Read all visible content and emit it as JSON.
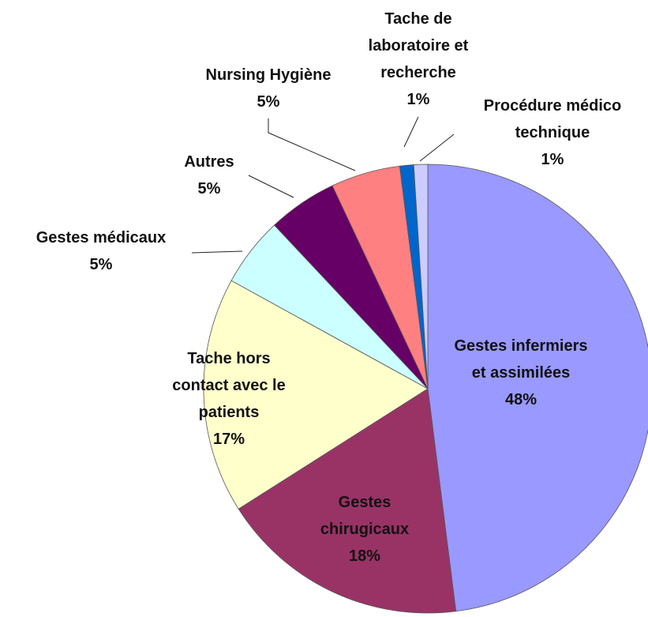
{
  "chart_data": {
    "type": "pie",
    "categories": [
      "Gestes infermiers et assimilées",
      "Gestes chirugicaux",
      "Tache hors contact avec le patients",
      "Gestes médicaux",
      "Autres",
      "Nursing Hygiène",
      "Tache de laboratoire et recherche",
      "Procédure médico technique"
    ],
    "values": [
      48,
      18,
      17,
      5,
      5,
      5,
      1,
      1
    ],
    "value_labels": [
      "48%",
      "18%",
      "17%",
      "5%",
      "5%",
      "5%",
      "1%",
      "1%"
    ],
    "colors": [
      "#9999ff",
      "#993366",
      "#ffffcc",
      "#ccffff",
      "#660066",
      "#ff8080",
      "#0066cc",
      "#ccccff"
    ]
  }
}
